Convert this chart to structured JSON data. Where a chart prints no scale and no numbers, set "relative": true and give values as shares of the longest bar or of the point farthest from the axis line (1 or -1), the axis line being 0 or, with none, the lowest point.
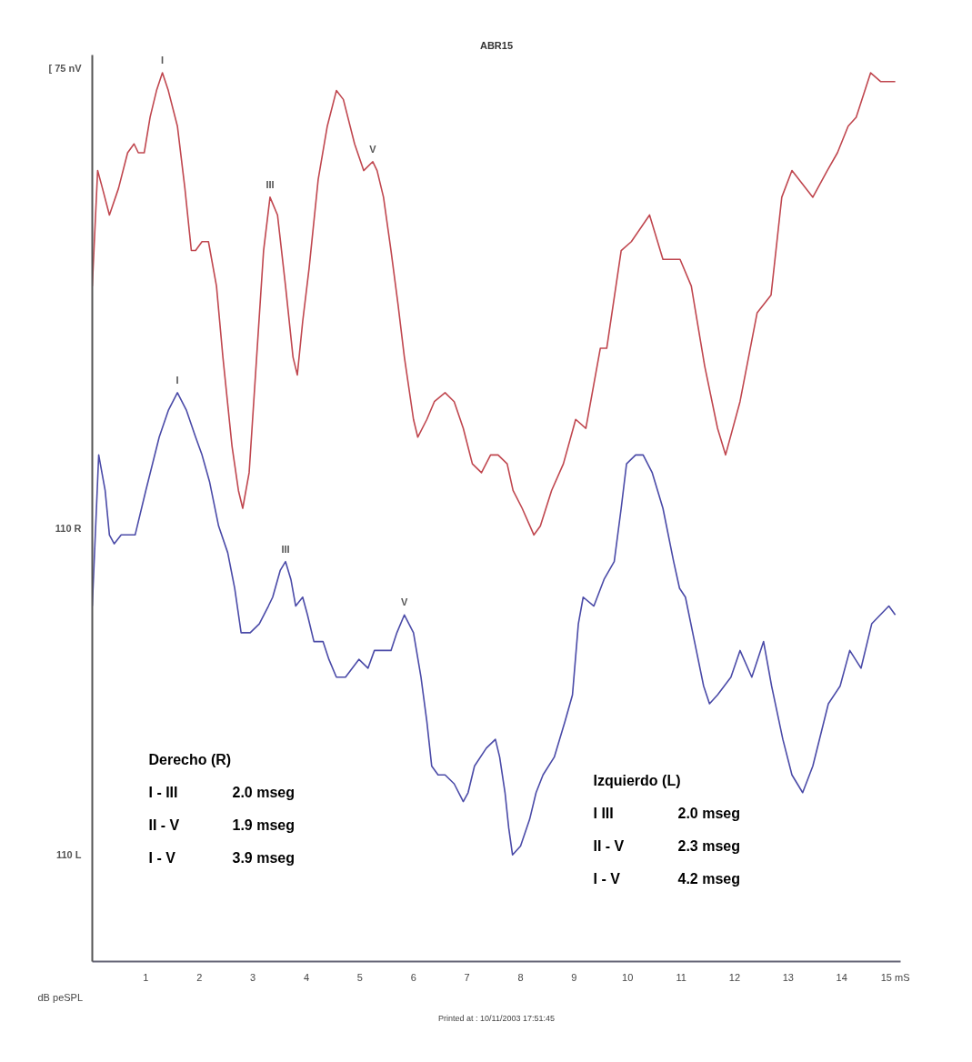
{
  "chart_data": {
    "type": "line",
    "title": "ABR15",
    "relative": true,
    "xlim": [
      0,
      15.1
    ],
    "xticks": [
      1,
      2,
      3,
      4,
      5,
      6,
      7,
      8,
      9,
      10,
      11,
      12,
      13,
      14,
      {
        "value": 15,
        "label": "15 mS"
      }
    ],
    "series": [
      {
        "color": "#c0474f",
        "x": [
          0.0,
          0.1,
          0.19,
          0.32,
          0.49,
          0.66,
          0.78,
          0.86,
          0.97,
          1.08,
          1.2,
          1.31,
          1.42,
          1.59,
          1.73,
          1.85,
          1.93,
          2.05,
          2.17,
          2.32,
          2.44,
          2.61,
          2.73,
          2.81,
          2.93,
          3.07,
          3.2,
          3.32,
          3.46,
          3.61,
          3.75,
          3.83,
          3.93,
          4.05,
          4.22,
          4.39,
          4.56,
          4.69,
          4.9,
          5.07,
          5.24,
          5.32,
          5.44,
          5.58,
          5.71,
          5.83,
          6.0,
          6.08,
          6.25,
          6.39,
          6.59,
          6.76,
          6.93,
          7.1,
          7.27,
          7.44,
          7.58,
          7.75,
          7.86,
          8.03,
          8.25,
          8.37,
          8.58,
          8.8,
          9.03,
          9.22,
          9.49,
          9.61,
          9.88,
          10.07,
          10.41,
          10.66,
          10.98,
          11.19,
          11.44,
          11.68,
          11.83,
          12.1,
          12.42,
          12.68,
          12.88,
          13.07,
          13.46,
          13.73,
          13.92,
          14.12,
          14.27,
          14.54,
          14.73,
          15.0
        ],
        "values": [
          0.76,
          0.89,
          0.87,
          0.84,
          0.87,
          0.91,
          0.92,
          0.91,
          0.91,
          0.95,
          0.98,
          1.0,
          0.98,
          0.94,
          0.87,
          0.8,
          0.8,
          0.81,
          0.81,
          0.76,
          0.68,
          0.58,
          0.53,
          0.51,
          0.55,
          0.68,
          0.8,
          0.86,
          0.84,
          0.76,
          0.68,
          0.66,
          0.72,
          0.78,
          0.88,
          0.94,
          0.98,
          0.97,
          0.92,
          0.89,
          0.9,
          0.89,
          0.86,
          0.8,
          0.74,
          0.68,
          0.61,
          0.59,
          0.61,
          0.63,
          0.64,
          0.63,
          0.6,
          0.56,
          0.55,
          0.57,
          0.57,
          0.56,
          0.53,
          0.51,
          0.48,
          0.49,
          0.53,
          0.56,
          0.61,
          0.6,
          0.69,
          0.69,
          0.8,
          0.81,
          0.84,
          0.79,
          0.79,
          0.76,
          0.67,
          0.6,
          0.57,
          0.63,
          0.73,
          0.75,
          0.86,
          0.89,
          0.86,
          0.89,
          0.91,
          0.94,
          0.95,
          1.0,
          0.99,
          0.99
        ]
      },
      {
        "color": "#4b4ba8",
        "x": [
          0.0,
          0.12,
          0.24,
          0.32,
          0.41,
          0.54,
          0.66,
          0.8,
          1.0,
          1.25,
          1.42,
          1.59,
          1.76,
          1.93,
          2.05,
          2.19,
          2.36,
          2.53,
          2.66,
          2.78,
          2.95,
          3.12,
          3.29,
          3.37,
          3.51,
          3.61,
          3.71,
          3.8,
          3.93,
          4.02,
          4.14,
          4.31,
          4.42,
          4.56,
          4.73,
          4.98,
          5.15,
          5.27,
          5.58,
          5.69,
          5.83,
          6.0,
          6.14,
          6.25,
          6.34,
          6.46,
          6.59,
          6.76,
          6.93,
          7.02,
          7.14,
          7.36,
          7.53,
          7.61,
          7.71,
          7.78,
          7.85,
          8.0,
          8.17,
          8.29,
          8.42,
          8.63,
          8.83,
          8.97,
          9.08,
          9.17,
          9.37,
          9.56,
          9.75,
          9.88,
          9.98,
          10.15,
          10.29,
          10.46,
          10.66,
          10.86,
          10.97,
          11.08,
          11.25,
          11.42,
          11.53,
          11.68,
          11.93,
          12.1,
          12.32,
          12.54,
          12.69,
          12.9,
          13.07,
          13.27,
          13.46,
          13.75,
          13.97,
          14.15,
          14.36,
          14.56,
          14.88,
          15.0
        ],
        "values": [
          0.4,
          0.57,
          0.53,
          0.48,
          0.47,
          0.48,
          0.48,
          0.48,
          0.53,
          0.59,
          0.62,
          0.64,
          0.62,
          0.59,
          0.57,
          0.54,
          0.49,
          0.46,
          0.42,
          0.37,
          0.37,
          0.38,
          0.4,
          0.41,
          0.44,
          0.45,
          0.43,
          0.4,
          0.41,
          0.39,
          0.36,
          0.36,
          0.34,
          0.32,
          0.32,
          0.34,
          0.33,
          0.35,
          0.35,
          0.37,
          0.39,
          0.37,
          0.32,
          0.27,
          0.22,
          0.21,
          0.21,
          0.2,
          0.18,
          0.19,
          0.22,
          0.24,
          0.25,
          0.23,
          0.19,
          0.15,
          0.12,
          0.13,
          0.16,
          0.19,
          0.21,
          0.23,
          0.27,
          0.3,
          0.38,
          0.41,
          0.4,
          0.43,
          0.45,
          0.51,
          0.56,
          0.57,
          0.57,
          0.55,
          0.51,
          0.45,
          0.42,
          0.41,
          0.36,
          0.31,
          0.29,
          0.3,
          0.32,
          0.35,
          0.32,
          0.36,
          0.31,
          0.25,
          0.21,
          0.19,
          0.22,
          0.29,
          0.31,
          0.35,
          0.33,
          0.38,
          0.4,
          0.39
        ]
      }
    ],
    "annotations": [
      {
        "text": "I",
        "x": 1.31,
        "y": 1.0
      },
      {
        "text": "III",
        "x": 3.32,
        "y": 0.86
      },
      {
        "text": "V",
        "x": 5.24,
        "y": 0.9
      },
      {
        "text": "I",
        "x": 1.59,
        "y": 0.64
      },
      {
        "text": "III",
        "x": 3.61,
        "y": 0.45
      },
      {
        "text": "V",
        "x": 5.83,
        "y": 0.39
      },
      "[ 75 nV",
      "110 R",
      "110 L",
      "dB peSPL",
      "Derecho (R)",
      "I - III",
      "2.0 mseg",
      "II - V",
      "1.9 mseg",
      "I - V",
      "3.9 mseg",
      "Izquierdo (L)",
      "I  III",
      "2.0 mseg",
      "II - V",
      "2.3 mseg",
      "I - V",
      "4.2 mseg",
      "Printed at : 10/11/2003 17:51:45"
    ]
  }
}
